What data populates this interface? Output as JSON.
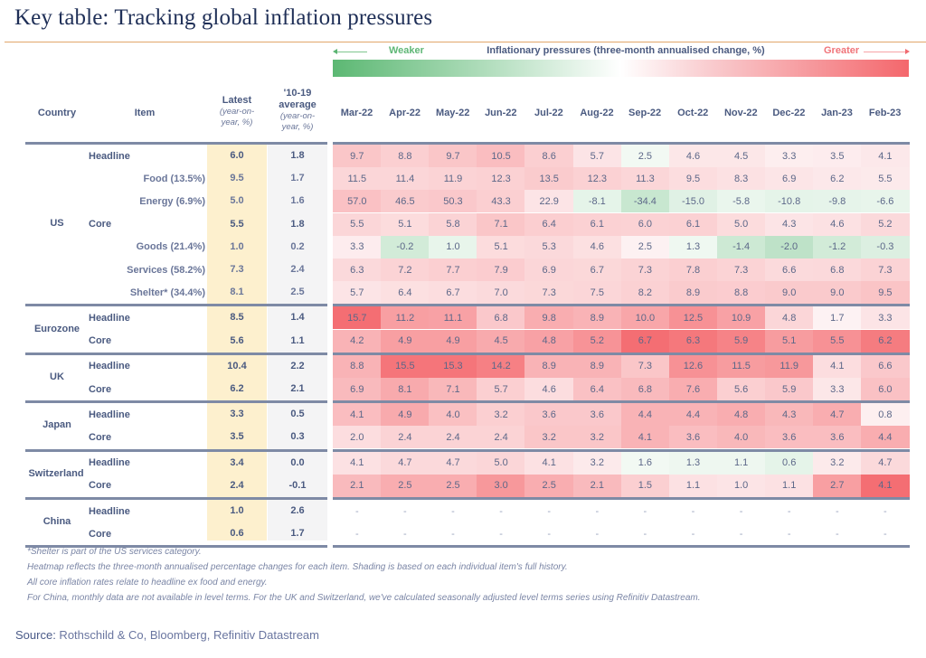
{
  "title": "Key table: Tracking global inflation pressures",
  "legend": {
    "weaker": "Weaker",
    "title": "Inflationary pressures (three-month annualised change, %)",
    "greater": "Greater",
    "colors": {
      "weaker": "#5cb873",
      "neutral": "#ffffff",
      "greater": "#f4676c"
    }
  },
  "headers": {
    "country": "Country",
    "item": "Item",
    "latest": "Latest",
    "latest_sub": "(year-on-year, %)",
    "average": "'10-19 average",
    "average_sub": "(year-on-year, %)"
  },
  "notes": [
    "*Shelter is part of the US services category.",
    "Heatmap reflects the three-month annualised percentage changes for each item. Shading is based on each individual item's full history.",
    "All core inflation rates relate to headline ex food and energy.",
    "For China, monthly data are not available in level terms. For the UK and Switzerland, we've calculated seasonally adjusted level terms series using Refinitiv Datastream."
  ],
  "source_label": "Source:",
  "source_text": " Rothschild & Co, Bloomberg, Refinitiv Datastream",
  "chart_data": {
    "type": "heatmap",
    "title": "Key table: Tracking global inflation pressures",
    "xlabel": "Inflationary pressures (three-month annualised change, %)",
    "months": [
      "Mar-22",
      "Apr-22",
      "May-22",
      "Jun-22",
      "Jul-22",
      "Aug-22",
      "Sep-22",
      "Oct-22",
      "Nov-22",
      "Dec-22",
      "Jan-23",
      "Feb-23"
    ],
    "groups": [
      {
        "country": "US",
        "rows": [
          {
            "item": "Headline",
            "sub": false,
            "latest": "6.0",
            "avg": "1.8",
            "values": [
              9.7,
              8.8,
              9.7,
              10.5,
              8.6,
              5.7,
              2.5,
              4.6,
              4.5,
              3.3,
              3.5,
              4.1
            ]
          },
          {
            "item": "Food (13.5%)",
            "sub": true,
            "latest": "9.5",
            "avg": "1.7",
            "values": [
              11.5,
              11.4,
              11.9,
              12.3,
              13.5,
              12.3,
              11.3,
              9.5,
              8.3,
              6.9,
              6.2,
              5.5
            ]
          },
          {
            "item": "Energy (6.9%)",
            "sub": true,
            "latest": "5.0",
            "avg": "1.6",
            "values": [
              57.0,
              46.5,
              50.3,
              43.3,
              22.9,
              -8.1,
              -34.4,
              -15.0,
              -5.8,
              -10.8,
              -9.8,
              -6.6
            ]
          },
          {
            "item": "Core",
            "sub": false,
            "latest": "5.5",
            "avg": "1.8",
            "values": [
              5.5,
              5.1,
              5.8,
              7.1,
              6.4,
              6.1,
              6.0,
              6.1,
              5.0,
              4.3,
              4.6,
              5.2
            ]
          },
          {
            "item": "Goods (21.4%)",
            "sub": true,
            "latest": "1.0",
            "avg": "0.2",
            "values": [
              3.3,
              -0.2,
              1.0,
              5.1,
              5.3,
              4.6,
              2.5,
              1.3,
              -1.4,
              -2.0,
              -1.2,
              -0.3
            ]
          },
          {
            "item": "Services (58.2%)",
            "sub": true,
            "latest": "7.3",
            "avg": "2.4",
            "values": [
              6.3,
              7.2,
              7.7,
              7.9,
              6.9,
              6.7,
              7.3,
              7.8,
              7.3,
              6.6,
              6.8,
              7.3
            ]
          },
          {
            "item": "Shelter* (34.4%)",
            "sub": true,
            "latest": "8.1",
            "avg": "2.5",
            "values": [
              5.7,
              6.4,
              6.7,
              7.0,
              7.3,
              7.5,
              8.2,
              8.9,
              8.8,
              9.0,
              9.0,
              9.5
            ]
          }
        ]
      },
      {
        "country": "Eurozone",
        "rows": [
          {
            "item": "Headline",
            "sub": false,
            "latest": "8.5",
            "avg": "1.4",
            "values": [
              15.7,
              11.2,
              11.1,
              6.8,
              9.8,
              8.9,
              10.0,
              12.5,
              10.9,
              4.8,
              1.7,
              3.3
            ]
          },
          {
            "item": "Core",
            "sub": false,
            "latest": "5.6",
            "avg": "1.1",
            "values": [
              4.2,
              4.9,
              4.9,
              4.5,
              4.8,
              5.2,
              6.7,
              6.3,
              5.9,
              5.1,
              5.5,
              6.2
            ]
          }
        ]
      },
      {
        "country": "UK",
        "rows": [
          {
            "item": "Headline",
            "sub": false,
            "latest": "10.4",
            "avg": "2.2",
            "values": [
              8.8,
              15.5,
              15.3,
              14.2,
              8.9,
              8.9,
              7.3,
              12.6,
              11.5,
              11.9,
              4.1,
              6.6
            ]
          },
          {
            "item": "Core",
            "sub": false,
            "latest": "6.2",
            "avg": "2.1",
            "values": [
              6.9,
              8.1,
              7.1,
              5.7,
              4.6,
              6.4,
              6.8,
              7.6,
              5.6,
              5.9,
              3.3,
              6.0
            ]
          }
        ]
      },
      {
        "country": "Japan",
        "rows": [
          {
            "item": "Headline",
            "sub": false,
            "latest": "3.3",
            "avg": "0.5",
            "values": [
              4.1,
              4.9,
              4.0,
              3.2,
              3.6,
              3.6,
              4.4,
              4.4,
              4.8,
              4.3,
              4.7,
              0.8
            ]
          },
          {
            "item": "Core",
            "sub": false,
            "latest": "3.5",
            "avg": "0.3",
            "values": [
              2.0,
              2.4,
              2.4,
              2.4,
              3.2,
              3.2,
              4.1,
              3.6,
              4.0,
              3.6,
              3.6,
              4.4
            ]
          }
        ]
      },
      {
        "country": "Switzerland",
        "rows": [
          {
            "item": "Headline",
            "sub": false,
            "latest": "3.4",
            "avg": "0.0",
            "values": [
              4.1,
              4.7,
              4.7,
              5.0,
              4.1,
              3.2,
              1.6,
              1.3,
              1.1,
              0.6,
              3.2,
              4.7
            ]
          },
          {
            "item": "Core",
            "sub": false,
            "latest": "2.4",
            "avg": "-0.1",
            "values": [
              2.1,
              2.5,
              2.5,
              3.0,
              2.5,
              2.1,
              1.5,
              1.1,
              1.0,
              1.1,
              2.7,
              4.1
            ]
          }
        ]
      },
      {
        "country": "China",
        "rows": [
          {
            "item": "Headline",
            "sub": false,
            "latest": "1.0",
            "avg": "2.6",
            "values": [
              null,
              null,
              null,
              null,
              null,
              null,
              null,
              null,
              null,
              null,
              null,
              null
            ]
          },
          {
            "item": "Core",
            "sub": false,
            "latest": "0.6",
            "avg": "1.7",
            "values": [
              null,
              null,
              null,
              null,
              null,
              null,
              null,
              null,
              null,
              null,
              null,
              null
            ]
          }
        ]
      }
    ],
    "missing_label": "-",
    "cell_shades": {
      "US": [
        [
          0.32,
          0.25,
          0.32,
          0.38,
          0.25,
          0.1,
          -0.02,
          0.08,
          0.08,
          0.03,
          0.04,
          0.07
        ],
        [
          0.2,
          0.2,
          0.22,
          0.24,
          0.28,
          0.24,
          0.2,
          0.15,
          0.12,
          0.09,
          0.07,
          0.06
        ],
        [
          0.35,
          0.28,
          0.3,
          0.25,
          0.1,
          -0.15,
          -0.45,
          -0.2,
          -0.1,
          -0.15,
          -0.14,
          -0.12
        ],
        [
          0.2,
          0.16,
          0.22,
          0.32,
          0.26,
          0.24,
          0.23,
          0.24,
          0.16,
          0.1,
          0.12,
          0.18
        ],
        [
          0.04,
          -0.35,
          -0.12,
          0.16,
          0.18,
          0.13,
          0.01,
          -0.05,
          -0.4,
          -0.55,
          -0.35,
          -0.25
        ],
        [
          0.18,
          0.22,
          0.25,
          0.27,
          0.2,
          0.19,
          0.22,
          0.25,
          0.22,
          0.17,
          0.18,
          0.22
        ],
        [
          0.1,
          0.13,
          0.15,
          0.17,
          0.19,
          0.2,
          0.24,
          0.28,
          0.27,
          0.29,
          0.29,
          0.33
        ]
      ],
      "Eurozone": [
        [
          0.95,
          0.6,
          0.58,
          0.3,
          0.5,
          0.45,
          0.55,
          0.7,
          0.58,
          0.2,
          0.0,
          0.1
        ],
        [
          0.45,
          0.6,
          0.6,
          0.52,
          0.58,
          0.68,
          0.95,
          0.88,
          0.8,
          0.62,
          0.7,
          0.85
        ]
      ],
      "UK": [
        [
          0.45,
          0.9,
          0.9,
          0.82,
          0.45,
          0.45,
          0.32,
          0.7,
          0.62,
          0.65,
          0.15,
          0.3
        ],
        [
          0.4,
          0.52,
          0.42,
          0.25,
          0.15,
          0.35,
          0.4,
          0.5,
          0.25,
          0.3,
          0.08,
          0.35
        ]
      ],
      "Japan": [
        [
          0.38,
          0.52,
          0.36,
          0.25,
          0.3,
          0.3,
          0.45,
          0.45,
          0.5,
          0.42,
          0.5,
          0.02
        ],
        [
          0.15,
          0.22,
          0.22,
          0.22,
          0.32,
          0.32,
          0.45,
          0.38,
          0.42,
          0.38,
          0.38,
          0.5
        ]
      ],
      "Switzerland": [
        [
          0.12,
          0.18,
          0.18,
          0.2,
          0.12,
          0.06,
          -0.02,
          -0.06,
          -0.06,
          -0.15,
          0.06,
          0.18
        ],
        [
          0.4,
          0.5,
          0.5,
          0.65,
          0.5,
          0.4,
          0.25,
          0.12,
          0.1,
          0.12,
          0.6,
          0.95
        ]
      ],
      "China": [
        [
          0,
          0,
          0,
          0,
          0,
          0,
          0,
          0,
          0,
          0,
          0,
          0
        ],
        [
          0,
          0,
          0,
          0,
          0,
          0,
          0,
          0,
          0,
          0,
          0,
          0
        ]
      ]
    }
  }
}
